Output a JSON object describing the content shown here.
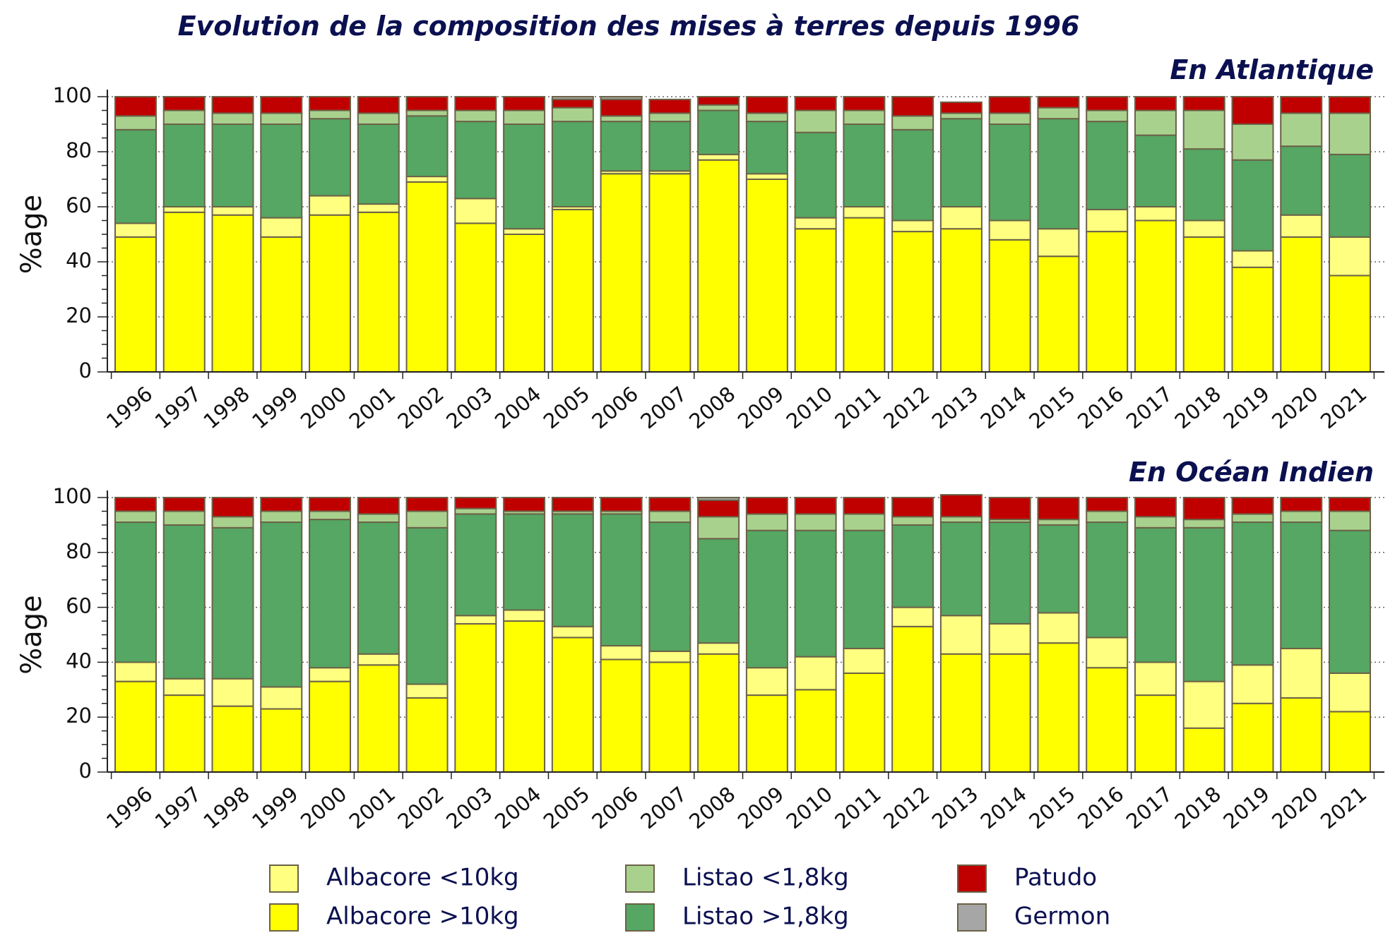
{
  "title": "Evolution de la composition des mises à terres depuis 1996",
  "legend": [
    {
      "key": "albacore_lt10",
      "label": "Albacore <10kg",
      "color": "#ffff80"
    },
    {
      "key": "albacore_gt10",
      "label": "Albacore >10kg",
      "color": "#ffff00"
    },
    {
      "key": "listao_lt18",
      "label": "Listao <1,8kg",
      "color": "#a9d18e"
    },
    {
      "key": "listao_gt18",
      "label": "Listao >1,8kg",
      "color": "#55a763"
    },
    {
      "key": "patudo",
      "label": "Patudo",
      "color": "#c00000"
    },
    {
      "key": "germon",
      "label": "Germon",
      "color": "#a6a6a6"
    }
  ],
  "chart_data": [
    {
      "type": "bar",
      "stacked": true,
      "title": "En Atlantique",
      "ylabel": "%age",
      "ylim": [
        0,
        100
      ],
      "yticks": [
        0,
        20,
        40,
        60,
        80,
        100
      ],
      "grid": "dotted horizontal at 20, 40, 60, 80, 100",
      "categories": [
        "1996",
        "1997",
        "1998",
        "1999",
        "2000",
        "2001",
        "2002",
        "2003",
        "2004",
        "2005",
        "2006",
        "2007",
        "2008",
        "2009",
        "2010",
        "2011",
        "2012",
        "2013",
        "2014",
        "2015",
        "2016",
        "2017",
        "2018",
        "2019",
        "2020",
        "2021"
      ],
      "series": [
        {
          "name": "Albacore >10kg",
          "values": [
            49,
            58,
            57,
            49,
            57,
            58,
            69,
            54,
            50,
            59,
            72,
            72,
            77,
            70,
            52,
            56,
            51,
            52,
            48,
            42,
            51,
            55,
            49,
            38,
            49,
            35
          ]
        },
        {
          "name": "Albacore <10kg",
          "values": [
            5,
            2,
            3,
            7,
            7,
            3,
            2,
            9,
            2,
            1,
            1,
            1,
            2,
            2,
            4,
            4,
            4,
            8,
            7,
            10,
            8,
            5,
            6,
            6,
            8,
            14
          ]
        },
        {
          "name": "Listao >1,8kg",
          "values": [
            34,
            30,
            30,
            34,
            28,
            29,
            22,
            28,
            38,
            31,
            18,
            18,
            16,
            19,
            31,
            30,
            33,
            32,
            35,
            40,
            32,
            26,
            26,
            33,
            25,
            30
          ]
        },
        {
          "name": "Listao <1,8kg",
          "values": [
            5,
            5,
            4,
            4,
            3,
            4,
            2,
            4,
            5,
            5,
            2,
            3,
            2,
            3,
            8,
            5,
            5,
            2,
            4,
            4,
            4,
            9,
            14,
            13,
            12,
            15
          ]
        },
        {
          "name": "Patudo",
          "values": [
            7,
            5,
            6,
            6,
            5,
            6,
            5,
            5,
            5,
            3,
            6,
            5,
            3,
            6,
            5,
            5,
            7,
            4,
            6,
            4,
            5,
            5,
            5,
            10,
            6,
            6
          ]
        },
        {
          "name": "Germon",
          "values": [
            0,
            0,
            0,
            0,
            0,
            0,
            0,
            0,
            0,
            1,
            1,
            0,
            0,
            0,
            0,
            0,
            0,
            0,
            0,
            0,
            0,
            0,
            0,
            0,
            0,
            0
          ]
        }
      ]
    },
    {
      "type": "bar",
      "stacked": true,
      "title": "En Océan Indien",
      "ylabel": "%age",
      "ylim": [
        0,
        100
      ],
      "yticks": [
        0,
        20,
        40,
        60,
        80,
        100
      ],
      "grid": "dotted horizontal at 20, 40, 60, 80, 100",
      "categories": [
        "1996",
        "1997",
        "1998",
        "1999",
        "2000",
        "2001",
        "2002",
        "2003",
        "2004",
        "2005",
        "2006",
        "2007",
        "2008",
        "2009",
        "2010",
        "2011",
        "2012",
        "2013",
        "2014",
        "2015",
        "2016",
        "2017",
        "2018",
        "2019",
        "2020",
        "2021"
      ],
      "series": [
        {
          "name": "Albacore >10kg",
          "values": [
            33,
            28,
            24,
            23,
            33,
            39,
            27,
            54,
            55,
            49,
            41,
            40,
            43,
            28,
            30,
            36,
            53,
            43,
            43,
            47,
            38,
            28,
            16,
            25,
            27,
            22
          ]
        },
        {
          "name": "Albacore <10kg",
          "values": [
            7,
            6,
            10,
            8,
            5,
            4,
            5,
            3,
            4,
            4,
            5,
            4,
            4,
            10,
            12,
            9,
            7,
            14,
            11,
            11,
            11,
            12,
            17,
            14,
            18,
            14
          ]
        },
        {
          "name": "Listao >1,8kg",
          "values": [
            51,
            56,
            55,
            60,
            54,
            48,
            57,
            37,
            35,
            41,
            48,
            47,
            38,
            50,
            46,
            43,
            30,
            34,
            37,
            32,
            42,
            49,
            56,
            52,
            46,
            52
          ]
        },
        {
          "name": "Listao <1,8kg",
          "values": [
            4,
            5,
            4,
            4,
            3,
            3,
            6,
            2,
            1,
            1,
            1,
            4,
            8,
            6,
            6,
            6,
            3,
            2,
            1,
            2,
            4,
            4,
            3,
            3,
            4,
            7
          ]
        },
        {
          "name": "Patudo",
          "values": [
            5,
            5,
            7,
            5,
            5,
            6,
            5,
            4,
            5,
            5,
            5,
            5,
            6,
            6,
            6,
            6,
            7,
            8,
            8,
            8,
            5,
            7,
            8,
            6,
            5,
            5
          ]
        },
        {
          "name": "Germon",
          "values": [
            0,
            0,
            0,
            0,
            0,
            0,
            0,
            0,
            0,
            0,
            0,
            0,
            1,
            0,
            0,
            0,
            0,
            0,
            0,
            0,
            0,
            0,
            0,
            0,
            0,
            0
          ]
        }
      ]
    }
  ]
}
